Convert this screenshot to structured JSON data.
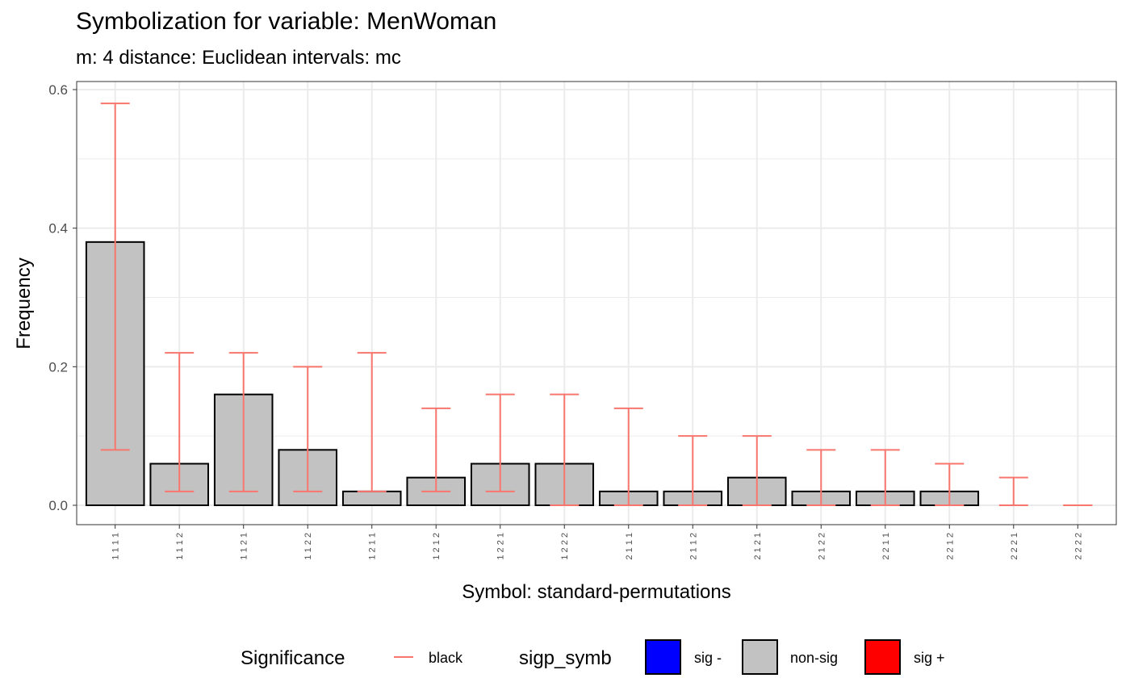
{
  "chart_data": {
    "type": "bar",
    "title": "Symbolization for variable: MenWoman",
    "subtitle": "m: 4  distance:  Euclidean  intervals:  mc",
    "xlabel": "Symbol: standard-permutations",
    "ylabel": "Frequency",
    "ylim": [
      0,
      0.6
    ],
    "yticks": [
      "0.0",
      "0.2",
      "0.4",
      "0.6"
    ],
    "categories": [
      "1 1 1 1",
      "1 1 1 2",
      "1 1 2 1",
      "1 1 2 2",
      "1 2 1 1",
      "1 2 1 2",
      "1 2 2 1",
      "1 2 2 2",
      "2 1 1 1",
      "2 1 1 2",
      "2 1 2 1",
      "2 1 2 2",
      "2 2 1 1",
      "2 2 1 2",
      "2 2 2 1",
      "2 2 2 2"
    ],
    "values": [
      0.38,
      0.06,
      0.16,
      0.08,
      0.02,
      0.04,
      0.06,
      0.06,
      0.02,
      0.02,
      0.04,
      0.02,
      0.02,
      0.02,
      0.0,
      0.0
    ],
    "interval_lower": [
      0.08,
      0.02,
      0.02,
      0.02,
      0.02,
      0.02,
      0.02,
      0.0,
      0.0,
      0.0,
      0.0,
      0.0,
      0.0,
      0.0,
      0.0,
      0.0
    ],
    "interval_upper": [
      0.58,
      0.22,
      0.22,
      0.2,
      0.22,
      0.14,
      0.16,
      0.16,
      0.14,
      0.1,
      0.1,
      0.08,
      0.08,
      0.06,
      0.04,
      0.0
    ],
    "bar_significance": [
      "non-sig",
      "non-sig",
      "non-sig",
      "non-sig",
      "non-sig",
      "non-sig",
      "non-sig",
      "non-sig",
      "non-sig",
      "non-sig",
      "non-sig",
      "non-sig",
      "non-sig",
      "non-sig",
      "non-sig",
      "non-sig"
    ],
    "grid": true,
    "legend_position": "bottom",
    "legend": {
      "significance_title": "Significance",
      "significance_line_label": "black",
      "sigp_title": "sigp_symb",
      "sigp_items": [
        {
          "label": "sig -",
          "color": "#0000FF"
        },
        {
          "label": "non-sig",
          "color": "#C2C2C2"
        },
        {
          "label": "sig +",
          "color": "#FF0000"
        }
      ]
    },
    "colors": {
      "bar_fill": "#C2C2C2",
      "bar_stroke": "#000000",
      "interval_line": "#F8766D",
      "grid": "#EBEBEB"
    }
  }
}
